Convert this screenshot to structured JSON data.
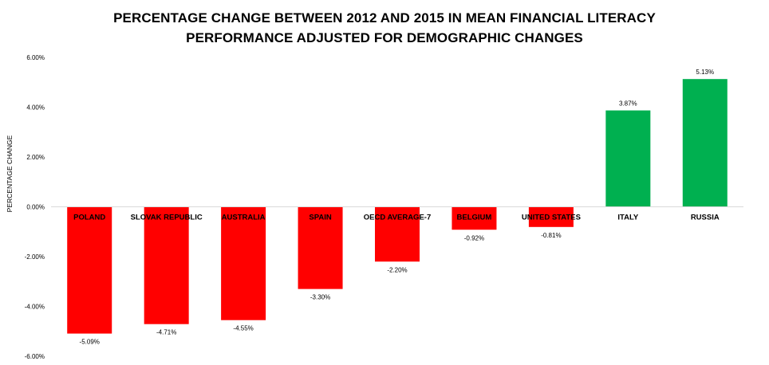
{
  "colors": {
    "negative": "#ff0000",
    "positive": "#00b050",
    "axis": "#d9d9d9",
    "text": "#000000"
  },
  "chart_data": {
    "type": "bar",
    "title_lines": [
      "PERCENTAGE CHANGE BETWEEN 2012 AND 2015 IN MEAN FINANCIAL LITERACY",
      "PERFORMANCE ADJUSTED FOR DEMOGRAPHIC CHANGES"
    ],
    "ylabel": "PERCENTAGE CHANGE",
    "xlabel": "",
    "categories": [
      "POLAND",
      "SLOVAK REPUBLIC",
      "AUSTRALIA",
      "SPAIN",
      "OECD AVERAGE-7",
      "BELGIUM",
      "UNITED STATES",
      "ITALY",
      "RUSSIA"
    ],
    "values": [
      -5.09,
      -4.71,
      -4.55,
      -3.3,
      -2.2,
      -0.92,
      -0.81,
      3.87,
      5.13
    ],
    "data_labels": [
      "-5.09%",
      "-4.71%",
      "-4.55%",
      "-3.30%",
      "-2.20%",
      "-0.92%",
      "-0.81%",
      "3.87%",
      "5.13%"
    ],
    "ylim": [
      -6,
      6
    ],
    "yticks": [
      6,
      4,
      2,
      0,
      -2,
      -4,
      -6
    ],
    "ytick_labels": [
      "6.00%",
      "4.00%",
      "2.00%",
      "0.00%",
      "-2.00%",
      "-4.00%",
      "-6.00%"
    ],
    "grid": false,
    "legend": "none"
  }
}
